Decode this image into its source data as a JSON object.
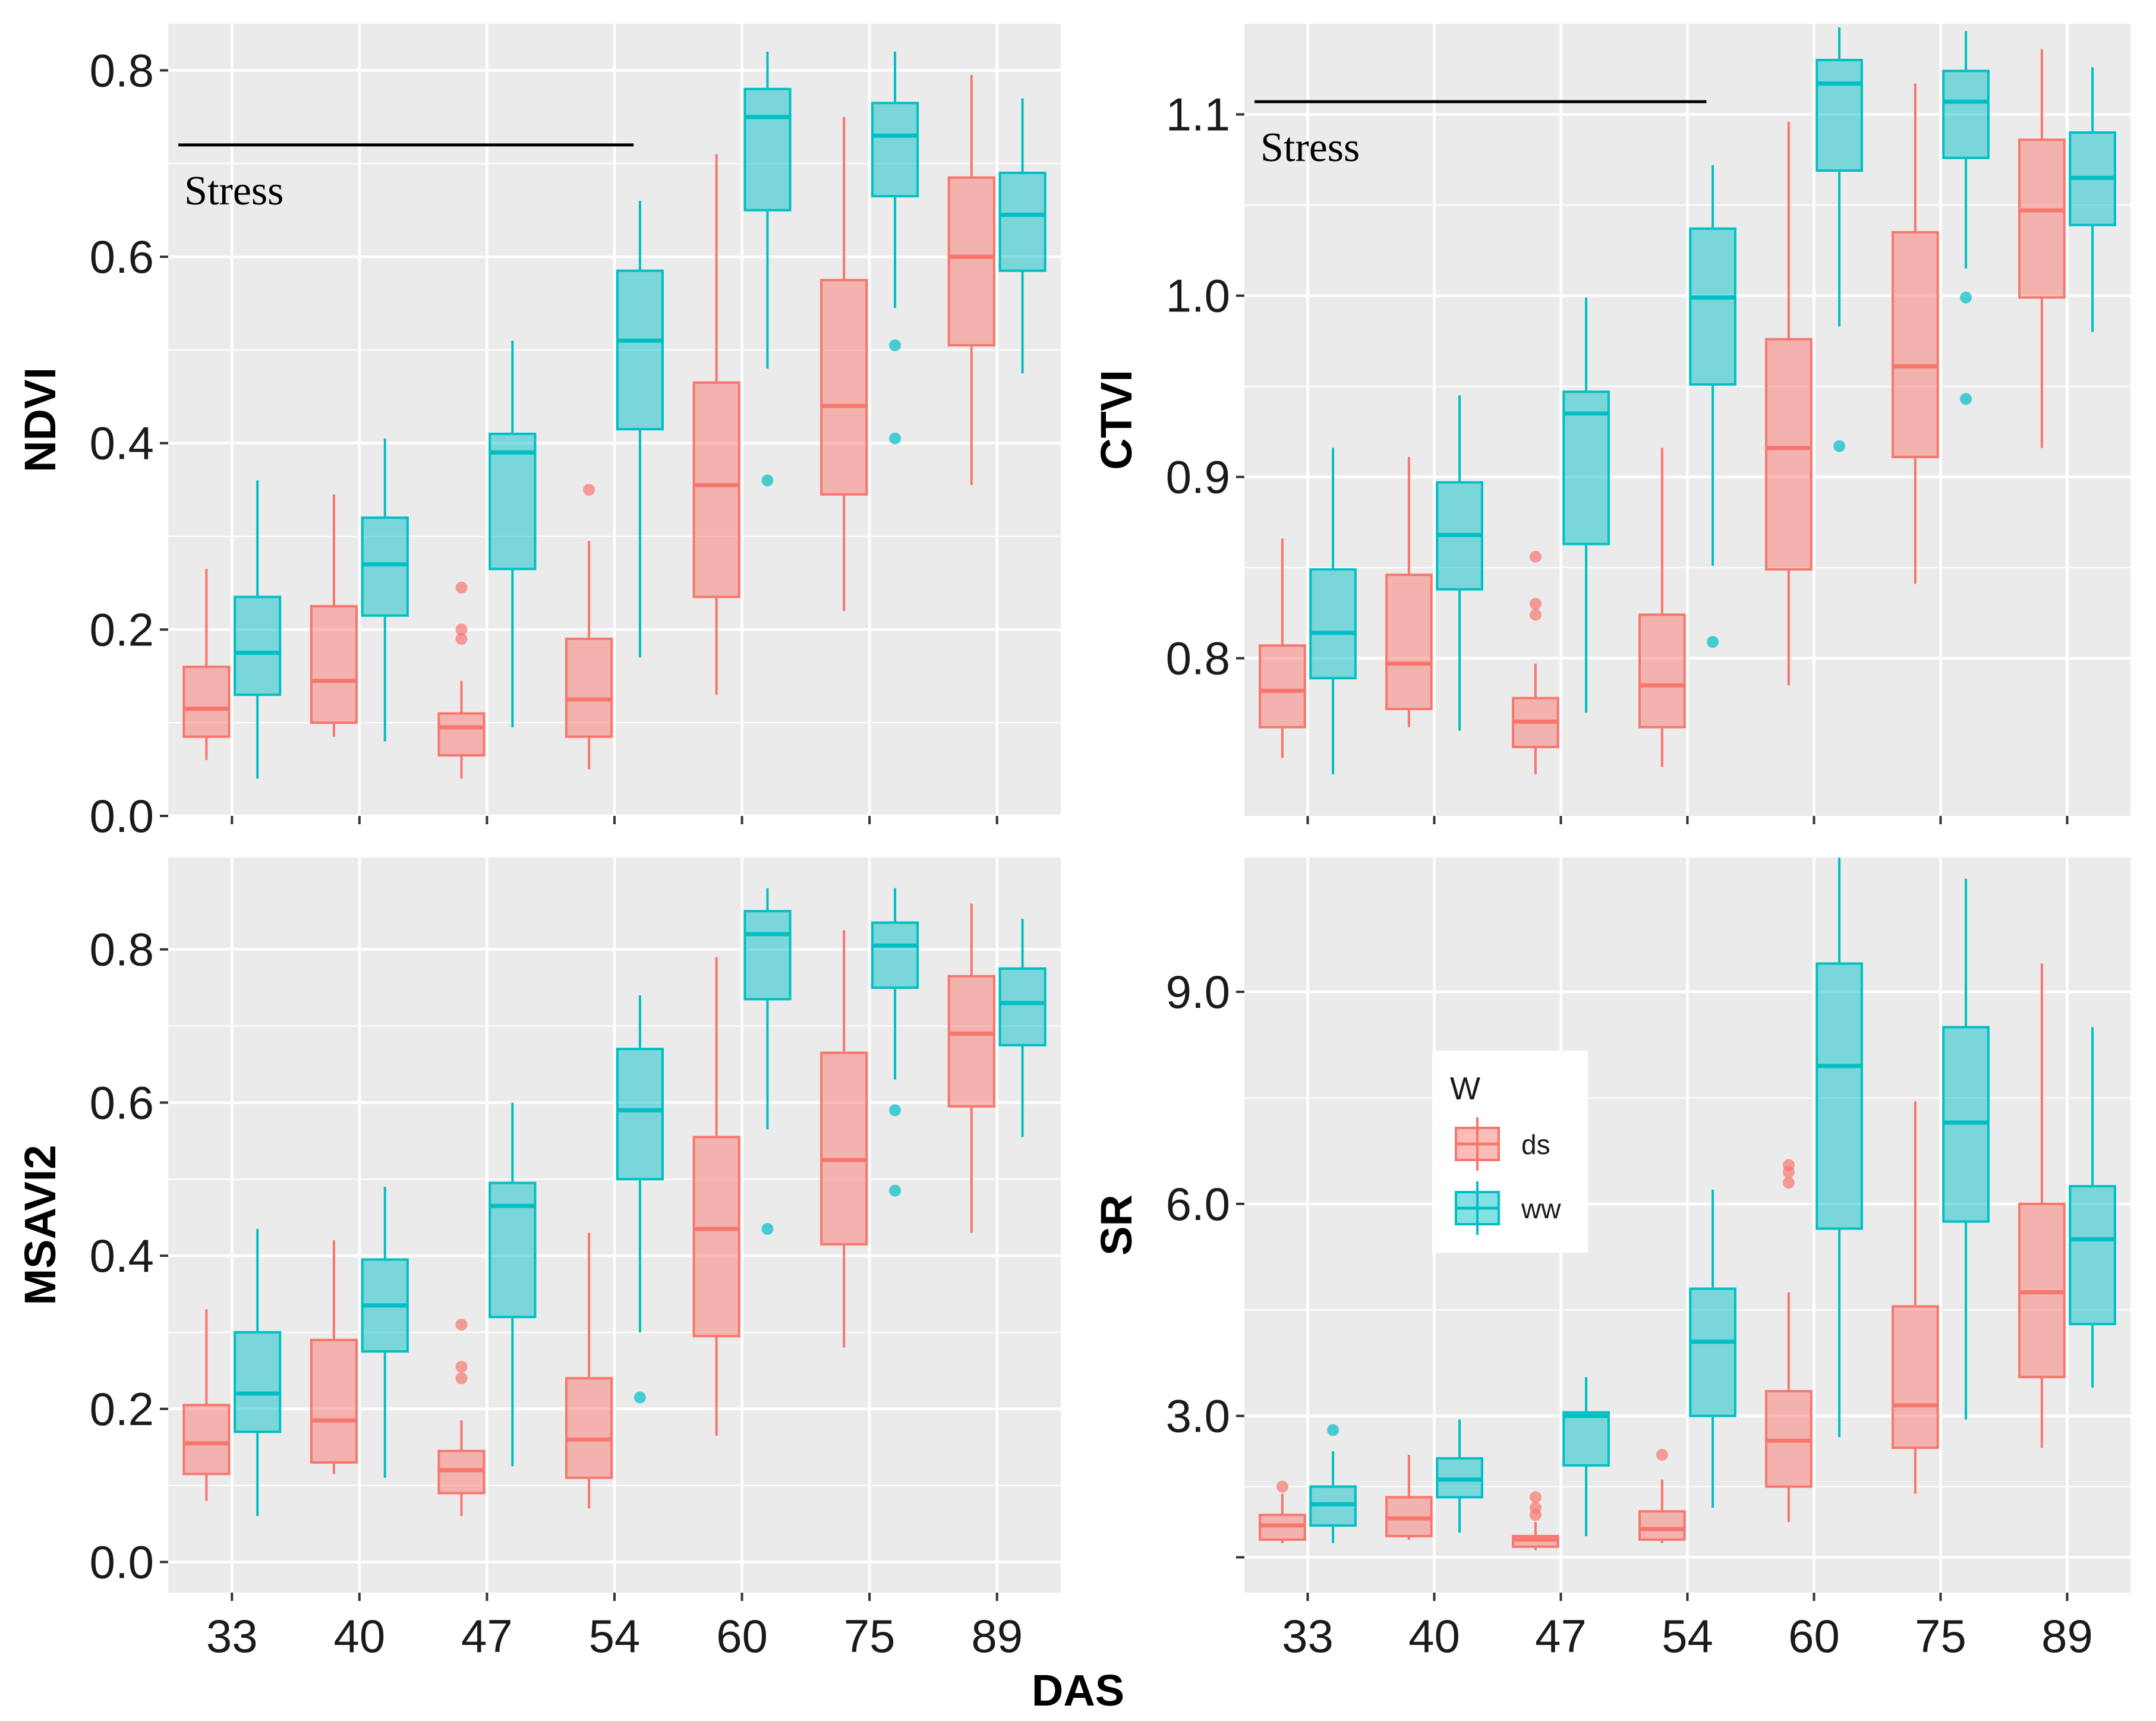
{
  "figure": {
    "shared_xlabel": "DAS",
    "categories": [
      "33",
      "40",
      "47",
      "54",
      "60",
      "75",
      "89"
    ],
    "colors": {
      "ds": "#F8766D",
      "ww": "#00BFC4",
      "panel_bg": "#EBEBEB",
      "grid": "#FFFFFF"
    },
    "legend": {
      "title": "W",
      "items": [
        {
          "key": "ds",
          "label": "ds"
        },
        {
          "key": "ww",
          "label": "ww"
        }
      ]
    },
    "annotation_text": "Stress"
  },
  "chart_data": [
    {
      "type": "box",
      "panel": "NDVI",
      "ylabel": "NDVI",
      "ylim": [
        0.0,
        0.85
      ],
      "yticks": [
        0.0,
        0.2,
        0.4,
        0.6,
        0.8
      ],
      "ytick_labels": [
        "0.0",
        "0.2",
        "0.4",
        "0.6",
        "0.8"
      ],
      "x_tick_labels_shown": false,
      "stress_line": {
        "y": 0.72,
        "from": "33",
        "to": "54"
      },
      "series": [
        {
          "name": "ds",
          "boxes": [
            {
              "x": "33",
              "min": 0.06,
              "q1": 0.085,
              "median": 0.115,
              "q3": 0.16,
              "max": 0.265,
              "outliers": []
            },
            {
              "x": "40",
              "min": 0.085,
              "q1": 0.1,
              "median": 0.145,
              "q3": 0.225,
              "max": 0.345,
              "outliers": []
            },
            {
              "x": "47",
              "min": 0.04,
              "q1": 0.065,
              "median": 0.095,
              "q3": 0.11,
              "max": 0.145,
              "outliers": [
                0.19,
                0.2,
                0.245
              ]
            },
            {
              "x": "54",
              "min": 0.05,
              "q1": 0.085,
              "median": 0.125,
              "q3": 0.19,
              "max": 0.295,
              "outliers": [
                0.35
              ]
            },
            {
              "x": "60",
              "min": 0.13,
              "q1": 0.235,
              "median": 0.355,
              "q3": 0.465,
              "max": 0.71,
              "outliers": []
            },
            {
              "x": "75",
              "min": 0.22,
              "q1": 0.345,
              "median": 0.44,
              "q3": 0.575,
              "max": 0.75,
              "outliers": []
            },
            {
              "x": "89",
              "min": 0.355,
              "q1": 0.505,
              "median": 0.6,
              "q3": 0.685,
              "max": 0.795,
              "outliers": []
            }
          ]
        },
        {
          "name": "ww",
          "boxes": [
            {
              "x": "33",
              "min": 0.04,
              "q1": 0.13,
              "median": 0.175,
              "q3": 0.235,
              "max": 0.36,
              "outliers": []
            },
            {
              "x": "40",
              "min": 0.08,
              "q1": 0.215,
              "median": 0.27,
              "q3": 0.32,
              "max": 0.405,
              "outliers": []
            },
            {
              "x": "47",
              "min": 0.095,
              "q1": 0.265,
              "median": 0.39,
              "q3": 0.41,
              "max": 0.51,
              "outliers": []
            },
            {
              "x": "54",
              "min": 0.17,
              "q1": 0.415,
              "median": 0.51,
              "q3": 0.585,
              "max": 0.66,
              "outliers": []
            },
            {
              "x": "60",
              "min": 0.48,
              "q1": 0.65,
              "median": 0.75,
              "q3": 0.78,
              "max": 0.82,
              "outliers": [
                0.36
              ]
            },
            {
              "x": "75",
              "min": 0.545,
              "q1": 0.665,
              "median": 0.73,
              "q3": 0.765,
              "max": 0.82,
              "outliers": [
                0.405,
                0.505
              ]
            },
            {
              "x": "89",
              "min": 0.475,
              "q1": 0.585,
              "median": 0.645,
              "q3": 0.69,
              "max": 0.77,
              "outliers": []
            }
          ]
        }
      ]
    },
    {
      "type": "box",
      "panel": "CTVI",
      "ylabel": "CTVI",
      "ylim": [
        0.713,
        1.15
      ],
      "yticks": [
        0.8,
        0.9,
        1.0,
        1.1
      ],
      "ytick_labels": [
        "0.8",
        "0.9",
        "1.0",
        "1.1"
      ],
      "x_tick_labels_shown": false,
      "stress_line": {
        "y": 1.107,
        "from": "33",
        "to": "54"
      },
      "series": [
        {
          "name": "ds",
          "boxes": [
            {
              "x": "33",
              "min": 0.745,
              "q1": 0.762,
              "median": 0.782,
              "q3": 0.807,
              "max": 0.866,
              "outliers": []
            },
            {
              "x": "40",
              "min": 0.762,
              "q1": 0.772,
              "median": 0.797,
              "q3": 0.846,
              "max": 0.911,
              "outliers": []
            },
            {
              "x": "47",
              "min": 0.736,
              "q1": 0.751,
              "median": 0.765,
              "q3": 0.778,
              "max": 0.797,
              "outliers": [
                0.824,
                0.83,
                0.856
              ]
            },
            {
              "x": "54",
              "min": 0.74,
              "q1": 0.762,
              "median": 0.785,
              "q3": 0.824,
              "max": 0.916,
              "outliers": []
            },
            {
              "x": "60",
              "min": 0.785,
              "q1": 0.849,
              "median": 0.916,
              "q3": 0.976,
              "max": 1.096,
              "outliers": []
            },
            {
              "x": "75",
              "min": 0.841,
              "q1": 0.911,
              "median": 0.961,
              "q3": 1.035,
              "max": 1.117,
              "outliers": []
            },
            {
              "x": "89",
              "min": 0.916,
              "q1": 0.999,
              "median": 1.047,
              "q3": 1.086,
              "max": 1.136,
              "outliers": []
            }
          ]
        },
        {
          "name": "ww",
          "boxes": [
            {
              "x": "33",
              "min": 0.736,
              "q1": 0.789,
              "median": 0.814,
              "q3": 0.849,
              "max": 0.916,
              "outliers": []
            },
            {
              "x": "40",
              "min": 0.76,
              "q1": 0.838,
              "median": 0.868,
              "q3": 0.897,
              "max": 0.945,
              "outliers": []
            },
            {
              "x": "47",
              "min": 0.77,
              "q1": 0.863,
              "median": 0.935,
              "q3": 0.947,
              "max": 0.999,
              "outliers": []
            },
            {
              "x": "54",
              "min": 0.851,
              "q1": 0.951,
              "median": 0.999,
              "q3": 1.037,
              "max": 1.072,
              "outliers": [
                0.809
              ]
            },
            {
              "x": "60",
              "min": 0.983,
              "q1": 1.069,
              "median": 1.117,
              "q3": 1.13,
              "max": 1.148,
              "outliers": [
                0.917
              ]
            },
            {
              "x": "75",
              "min": 1.015,
              "q1": 1.076,
              "median": 1.107,
              "q3": 1.124,
              "max": 1.146,
              "outliers": [
                0.943,
                0.999
              ]
            },
            {
              "x": "89",
              "min": 0.98,
              "q1": 1.039,
              "median": 1.065,
              "q3": 1.09,
              "max": 1.126,
              "outliers": []
            }
          ]
        }
      ]
    },
    {
      "type": "box",
      "panel": "MSAVI2",
      "ylabel": "MSAVI2",
      "ylim": [
        -0.04,
        0.92
      ],
      "yticks": [
        0.0,
        0.2,
        0.4,
        0.6,
        0.8
      ],
      "ytick_labels": [
        "0.0",
        "0.2",
        "0.4",
        "0.6",
        "0.8"
      ],
      "x_tick_labels_shown": true,
      "series": [
        {
          "name": "ds",
          "boxes": [
            {
              "x": "33",
              "min": 0.08,
              "q1": 0.115,
              "median": 0.155,
              "q3": 0.205,
              "max": 0.33,
              "outliers": []
            },
            {
              "x": "40",
              "min": 0.115,
              "q1": 0.13,
              "median": 0.185,
              "q3": 0.29,
              "max": 0.42,
              "outliers": []
            },
            {
              "x": "47",
              "min": 0.06,
              "q1": 0.09,
              "median": 0.12,
              "q3": 0.145,
              "max": 0.185,
              "outliers": [
                0.24,
                0.255,
                0.31
              ]
            },
            {
              "x": "54",
              "min": 0.07,
              "q1": 0.11,
              "median": 0.16,
              "q3": 0.24,
              "max": 0.43,
              "outliers": []
            },
            {
              "x": "60",
              "min": 0.165,
              "q1": 0.295,
              "median": 0.435,
              "q3": 0.555,
              "max": 0.79,
              "outliers": []
            },
            {
              "x": "75",
              "min": 0.28,
              "q1": 0.415,
              "median": 0.525,
              "q3": 0.665,
              "max": 0.825,
              "outliers": []
            },
            {
              "x": "89",
              "min": 0.43,
              "q1": 0.595,
              "median": 0.69,
              "q3": 0.765,
              "max": 0.86,
              "outliers": []
            }
          ]
        },
        {
          "name": "ww",
          "boxes": [
            {
              "x": "33",
              "min": 0.06,
              "q1": 0.17,
              "median": 0.22,
              "q3": 0.3,
              "max": 0.435,
              "outliers": []
            },
            {
              "x": "40",
              "min": 0.11,
              "q1": 0.275,
              "median": 0.335,
              "q3": 0.395,
              "max": 0.49,
              "outliers": []
            },
            {
              "x": "47",
              "min": 0.125,
              "q1": 0.32,
              "median": 0.465,
              "q3": 0.495,
              "max": 0.6,
              "outliers": []
            },
            {
              "x": "54",
              "min": 0.3,
              "q1": 0.5,
              "median": 0.59,
              "q3": 0.67,
              "max": 0.74,
              "outliers": [
                0.215
              ]
            },
            {
              "x": "60",
              "min": 0.565,
              "q1": 0.735,
              "median": 0.82,
              "q3": 0.85,
              "max": 0.88,
              "outliers": [
                0.435
              ]
            },
            {
              "x": "75",
              "min": 0.63,
              "q1": 0.75,
              "median": 0.805,
              "q3": 0.835,
              "max": 0.88,
              "outliers": [
                0.485,
                0.59
              ]
            },
            {
              "x": "89",
              "min": 0.555,
              "q1": 0.675,
              "median": 0.73,
              "q3": 0.775,
              "max": 0.84,
              "outliers": []
            }
          ]
        }
      ]
    },
    {
      "type": "box",
      "panel": "SR",
      "ylabel": "SR",
      "ylim": [
        0.5,
        10.9
      ],
      "yticks": [
        1.0,
        3.0,
        6.0,
        9.0
      ],
      "ytick_labels": [
        "",
        "3.0",
        "6.0",
        "9.0"
      ],
      "x_tick_labels_shown": true,
      "series": [
        {
          "name": "ds",
          "boxes": [
            {
              "x": "33",
              "min": 1.2,
              "q1": 1.25,
              "median": 1.45,
              "q3": 1.6,
              "max": 1.9,
              "outliers": [
                2.0
              ]
            },
            {
              "x": "40",
              "min": 1.25,
              "q1": 1.3,
              "median": 1.55,
              "q3": 1.85,
              "max": 2.45,
              "outliers": []
            },
            {
              "x": "47",
              "min": 1.1,
              "q1": 1.15,
              "median": 1.25,
              "q3": 1.3,
              "max": 1.5,
              "outliers": [
                1.6,
                1.7,
                1.85
              ]
            },
            {
              "x": "54",
              "min": 1.2,
              "q1": 1.25,
              "median": 1.4,
              "q3": 1.65,
              "max": 2.1,
              "outliers": [
                2.45
              ]
            },
            {
              "x": "60",
              "min": 1.5,
              "q1": 2.0,
              "median": 2.65,
              "q3": 3.35,
              "max": 4.75,
              "outliers": [
                6.3,
                6.45,
                6.55
              ]
            },
            {
              "x": "75",
              "min": 1.9,
              "q1": 2.55,
              "median": 3.15,
              "q3": 4.55,
              "max": 7.45,
              "outliers": []
            },
            {
              "x": "89",
              "min": 2.55,
              "q1": 3.55,
              "median": 4.75,
              "q3": 6.0,
              "max": 9.4,
              "outliers": []
            }
          ]
        },
        {
          "name": "ww",
          "boxes": [
            {
              "x": "33",
              "min": 1.2,
              "q1": 1.45,
              "median": 1.75,
              "q3": 2.0,
              "max": 2.5,
              "outliers": [
                2.8
              ]
            },
            {
              "x": "40",
              "min": 1.35,
              "q1": 1.85,
              "median": 2.1,
              "q3": 2.4,
              "max": 2.95,
              "outliers": []
            },
            {
              "x": "47",
              "min": 1.3,
              "q1": 2.3,
              "median": 3.0,
              "q3": 3.05,
              "max": 3.55,
              "outliers": []
            },
            {
              "x": "54",
              "min": 1.7,
              "q1": 3.0,
              "median": 4.05,
              "q3": 4.8,
              "max": 6.2,
              "outliers": []
            },
            {
              "x": "60",
              "min": 2.7,
              "q1": 5.65,
              "median": 7.95,
              "q3": 9.4,
              "max": 10.9,
              "outliers": []
            },
            {
              "x": "75",
              "min": 2.95,
              "q1": 5.75,
              "median": 7.15,
              "q3": 8.5,
              "max": 10.6,
              "outliers": []
            },
            {
              "x": "89",
              "min": 3.4,
              "q1": 4.3,
              "median": 5.5,
              "q3": 6.25,
              "max": 8.5,
              "outliers": []
            }
          ]
        }
      ]
    }
  ]
}
